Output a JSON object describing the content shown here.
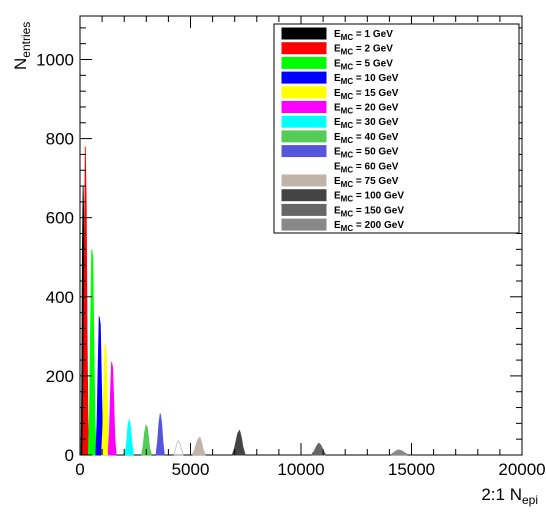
{
  "chart_data": {
    "type": "histogram",
    "xlabel": "2:1 N",
    "xlabel_sub": "epi",
    "ylabel": "N",
    "ylabel_sub": "entries",
    "xlim": [
      0,
      20000
    ],
    "ylim": [
      0,
      1110
    ],
    "x_ticks": [
      0,
      5000,
      10000,
      15000,
      20000
    ],
    "x_tick_labels": [
      "0",
      "5000",
      "10000",
      "15000",
      "20000"
    ],
    "y_ticks": [
      0,
      200,
      400,
      600,
      800,
      1000
    ],
    "y_tick_labels": [
      "0",
      "200",
      "400",
      "600",
      "800",
      "1000"
    ],
    "legend_position": "top-right",
    "series": [
      {
        "name": "E",
        "sub": "MC",
        "label": " = 1 GeV",
        "color": "#000000",
        "fill": true,
        "x": [
          50,
          80,
          110,
          140,
          170,
          200,
          230,
          260
        ],
        "y": [
          20,
          180,
          520,
          680,
          600,
          300,
          90,
          10
        ]
      },
      {
        "name": "E",
        "sub": "MC",
        "label": " = 2 GeV",
        "color": "#ff0000",
        "fill": true,
        "x": [
          120,
          160,
          200,
          240,
          280,
          320,
          360,
          400
        ],
        "y": [
          15,
          160,
          520,
          780,
          640,
          300,
          80,
          10
        ]
      },
      {
        "name": "E",
        "sub": "MC",
        "label": " = 5 GeV",
        "color": "#00ff00",
        "fill": true,
        "x": [
          380,
          430,
          480,
          530,
          580,
          630,
          680,
          730
        ],
        "y": [
          10,
          110,
          330,
          520,
          500,
          280,
          90,
          10
        ]
      },
      {
        "name": "E",
        "sub": "MC",
        "label": " = 10 GeV",
        "color": "#0000ff",
        "fill": true,
        "x": [
          720,
          770,
          820,
          870,
          920,
          970,
          1020,
          1070
        ],
        "y": [
          10,
          80,
          220,
          350,
          330,
          190,
          60,
          8
        ]
      },
      {
        "name": "E",
        "sub": "MC",
        "label": " = 15 GeV",
        "color": "#ffff00",
        "fill": true,
        "x": [
          980,
          1030,
          1080,
          1130,
          1180,
          1230,
          1280,
          1330
        ],
        "y": [
          10,
          70,
          190,
          280,
          260,
          150,
          50,
          8
        ]
      },
      {
        "name": "E",
        "sub": "MC",
        "label": " = 20 GeV",
        "color": "#ff00ff",
        "fill": true,
        "x": [
          1280,
          1330,
          1380,
          1430,
          1480,
          1530,
          1580,
          1630
        ],
        "y": [
          8,
          60,
          160,
          235,
          220,
          130,
          40,
          6
        ]
      },
      {
        "name": "E",
        "sub": "MC",
        "label": " = 30 GeV",
        "color": "#00ffff",
        "fill": true,
        "x": [
          2050,
          2110,
          2170,
          2230,
          2290,
          2350,
          2410
        ],
        "y": [
          6,
          30,
          75,
          90,
          70,
          30,
          5
        ]
      },
      {
        "name": "E",
        "sub": "MC",
        "label": " = 40 GeV",
        "color": "#55cc55",
        "fill": true,
        "x": [
          2800,
          2860,
          2920,
          2980,
          3040,
          3100,
          3160,
          3220
        ],
        "y": [
          5,
          25,
          55,
          75,
          70,
          45,
          15,
          4
        ]
      },
      {
        "name": "E",
        "sub": "MC",
        "label": " = 50 GeV",
        "color": "#5555dd",
        "fill": true,
        "x": [
          3450,
          3510,
          3570,
          3630,
          3690,
          3750,
          3810
        ],
        "y": [
          5,
          35,
          80,
          105,
          85,
          35,
          5
        ]
      },
      {
        "name": "E",
        "sub": "MC",
        "label": " = 60 GeV",
        "color": "#ffffff",
        "fill": false,
        "x": [
          4250,
          4320,
          4390,
          4460,
          4530,
          4600,
          4670
        ],
        "y": [
          3,
          15,
          30,
          36,
          28,
          12,
          3
        ]
      },
      {
        "name": "E",
        "sub": "MC",
        "label": " = 75 GeV",
        "color": "#c0b4a8",
        "fill": true,
        "x": [
          5100,
          5180,
          5260,
          5340,
          5420,
          5500,
          5580,
          5660
        ],
        "y": [
          3,
          12,
          28,
          40,
          45,
          32,
          12,
          3
        ]
      },
      {
        "name": "E",
        "sub": "MC",
        "label": " = 100 GeV",
        "color": "#444444",
        "fill": true,
        "x": [
          6900,
          6980,
          7060,
          7140,
          7220,
          7300,
          7380,
          7460
        ],
        "y": [
          3,
          15,
          35,
          55,
          62,
          45,
          18,
          3
        ]
      },
      {
        "name": "E",
        "sub": "MC",
        "label": " = 150 GeV",
        "color": "#666666",
        "fill": true,
        "x": [
          10500,
          10600,
          10700,
          10800,
          10900,
          11000,
          11100
        ],
        "y": [
          3,
          10,
          22,
          30,
          25,
          12,
          3
        ]
      },
      {
        "name": "E",
        "sub": "MC",
        "label": " = 200 GeV",
        "color": "#888888",
        "fill": true,
        "x": [
          14100,
          14200,
          14300,
          14400,
          14500,
          14600,
          14700,
          14800
        ],
        "y": [
          2,
          6,
          10,
          13,
          12,
          9,
          5,
          2
        ]
      }
    ]
  }
}
